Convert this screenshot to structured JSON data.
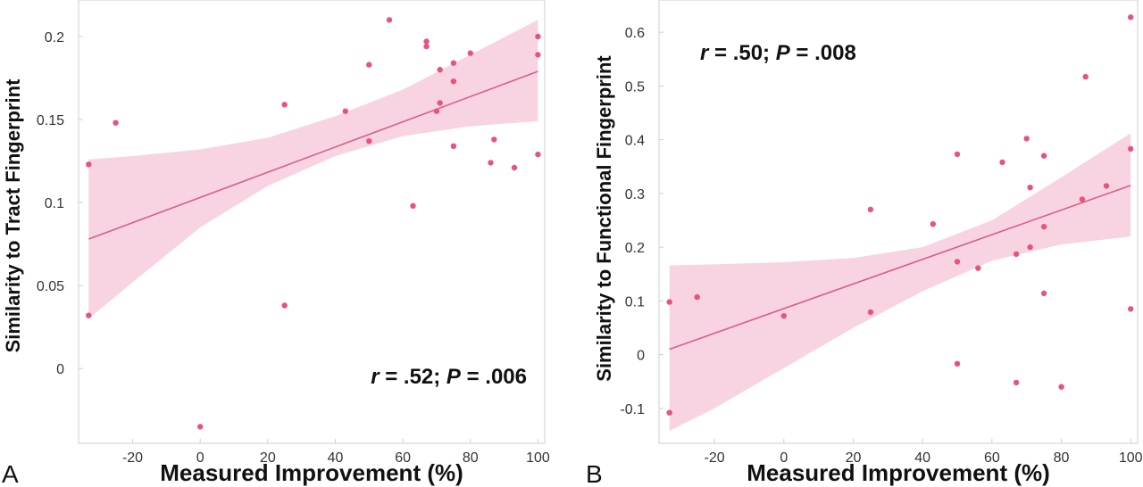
{
  "chart_data": [
    {
      "type": "scatter",
      "panel_label": "A",
      "xlabel": "Measured Improvement (%)",
      "ylabel": "Similarity to Tract Fingerprint",
      "annotation": {
        "r_sym": "r",
        "r_val": " = .52; ",
        "p_sym": "P",
        "p_val": " = .006"
      },
      "annotation_position": "bottom-right",
      "xlim": [
        -36,
        102
      ],
      "ylim": [
        -0.045,
        0.222
      ],
      "xticks": [
        -20,
        0,
        20,
        40,
        60,
        80,
        100
      ],
      "xtick_labels": [
        "-20",
        "0",
        "20",
        "40",
        "60",
        "80",
        "100"
      ],
      "yticks": [
        0,
        0.05,
        0.1,
        0.15,
        0.2
      ],
      "ytick_labels": [
        "0",
        "0.05",
        "0.1",
        "0.15",
        "0.2"
      ],
      "grid": false,
      "x": [
        -33,
        -33,
        -25,
        0,
        25,
        25,
        43,
        50,
        50,
        56,
        63,
        67,
        67,
        70,
        71,
        71,
        75,
        75,
        75,
        80,
        86,
        87,
        93,
        100,
        100,
        100
      ],
      "y": [
        0.123,
        0.032,
        0.148,
        -0.035,
        0.159,
        0.038,
        0.155,
        0.183,
        0.137,
        0.21,
        0.098,
        0.194,
        0.197,
        0.155,
        0.18,
        0.16,
        0.173,
        0.184,
        0.134,
        0.19,
        0.124,
        0.138,
        0.121,
        0.2,
        0.189,
        0.129
      ],
      "fit": {
        "x": [
          -33,
          100
        ],
        "y": [
          0.078,
          0.179
        ]
      },
      "ci_lower": {
        "x": [
          -33,
          -20,
          0,
          20,
          40,
          60,
          80,
          100
        ],
        "y": [
          0.03,
          0.052,
          0.085,
          0.11,
          0.128,
          0.14,
          0.146,
          0.149
        ]
      },
      "ci_upper": {
        "x": [
          -33,
          -20,
          0,
          20,
          40,
          60,
          80,
          100
        ],
        "y": [
          0.126,
          0.128,
          0.132,
          0.139,
          0.152,
          0.168,
          0.189,
          0.21
        ]
      }
    },
    {
      "type": "scatter",
      "panel_label": "B",
      "xlabel": "Measured Improvement (%)",
      "ylabel": "Similarity to Functional Fingerprint",
      "annotation": {
        "r_sym": "r",
        "r_val": " = .50; ",
        "p_sym": "P",
        "p_val": " = .008"
      },
      "annotation_position": "top-left",
      "xlim": [
        -36,
        102
      ],
      "ylim": [
        -0.165,
        0.66
      ],
      "xticks": [
        -20,
        0,
        20,
        40,
        60,
        80,
        100
      ],
      "xtick_labels": [
        "-20",
        "0",
        "20",
        "40",
        "60",
        "80",
        "100"
      ],
      "yticks": [
        -0.1,
        0,
        0.1,
        0.2,
        0.3,
        0.4,
        0.5,
        0.6
      ],
      "ytick_labels": [
        "-0.1",
        "0",
        "0.1",
        "0.2",
        "0.3",
        "0.4",
        "0.5",
        "0.6"
      ],
      "grid": false,
      "x": [
        -33,
        -33,
        -25,
        0,
        25,
        25,
        43,
        50,
        50,
        50,
        56,
        63,
        67,
        67,
        70,
        71,
        71,
        75,
        75,
        75,
        80,
        86,
        87,
        93,
        100,
        100,
        100
      ],
      "y": [
        0.098,
        -0.108,
        0.107,
        0.072,
        0.27,
        0.079,
        0.243,
        0.373,
        0.173,
        -0.017,
        0.161,
        0.358,
        0.187,
        -0.052,
        0.402,
        0.311,
        0.2,
        0.37,
        0.238,
        0.114,
        -0.06,
        0.289,
        0.517,
        0.314,
        0.628,
        0.383,
        0.085
      ],
      "fit": {
        "x": [
          -33,
          100
        ],
        "y": [
          0.01,
          0.315
        ]
      },
      "ci_lower": {
        "x": [
          -33,
          -20,
          0,
          20,
          40,
          60,
          80,
          100
        ],
        "y": [
          -0.142,
          -0.1,
          -0.025,
          0.05,
          0.118,
          0.175,
          0.205,
          0.22
        ]
      },
      "ci_upper": {
        "x": [
          -33,
          -20,
          0,
          20,
          40,
          60,
          80,
          100
        ],
        "y": [
          0.166,
          0.168,
          0.172,
          0.18,
          0.2,
          0.25,
          0.33,
          0.412
        ]
      }
    }
  ],
  "colors": {
    "band": "#f8d3e2",
    "line": "#d95f86",
    "point": "#e8537a",
    "axis": "#cfcfcf"
  }
}
